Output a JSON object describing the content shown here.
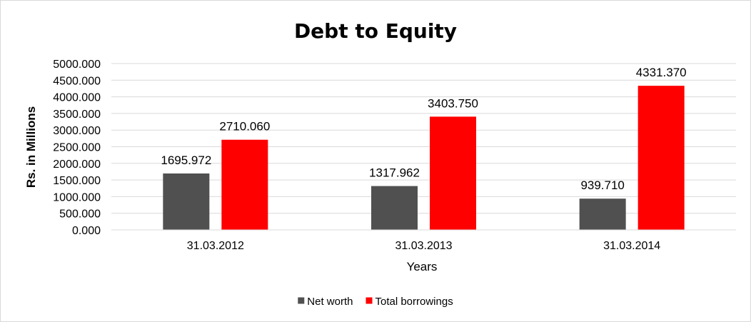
{
  "chart_data": {
    "type": "bar",
    "title": "Debt to Equity",
    "xlabel": "Years",
    "ylabel": "Rs. in Millions",
    "categories": [
      "31.03.2012",
      "31.03.2013",
      "31.03.2014"
    ],
    "series": [
      {
        "name": "Net worth",
        "color": "#505050",
        "values": [
          1695.972,
          1317.962,
          939.71
        ],
        "labels": [
          "1695.972",
          "1317.962",
          "939.710"
        ]
      },
      {
        "name": "Total borrowings",
        "color": "#ff0000",
        "values": [
          2710.06,
          3403.75,
          4331.37
        ],
        "labels": [
          "2710.060",
          "3403.750",
          "4331.370"
        ]
      }
    ],
    "ylim": [
      0,
      5000
    ],
    "yticks": [
      0,
      500,
      1000,
      1500,
      2000,
      2500,
      3000,
      3500,
      4000,
      4500,
      5000
    ],
    "ytick_labels": [
      "0.000",
      "500.000",
      "1000.000",
      "1500.000",
      "2000.000",
      "2500.000",
      "3000.000",
      "3500.000",
      "4000.000",
      "4500.000",
      "5000.000"
    ],
    "grid": true,
    "legend_position": "bottom"
  }
}
